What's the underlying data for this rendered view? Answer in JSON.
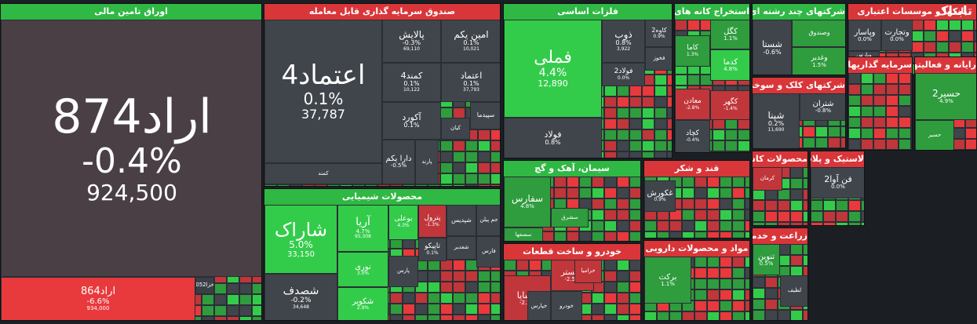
{
  "chart_data": {
    "type": "treemap",
    "colors": {
      "up_strong": "#33cc4a",
      "up": "#2f9c3e",
      "neutral": "#40454c",
      "down": "#c0363a",
      "down_strong": "#e8393c",
      "header_up": "#2fb844",
      "header_down": "#d9363a"
    },
    "sectors": [
      {
        "name": "اوراق تامین مالی",
        "header": "up",
        "tiles": [
          {
            "symbol": "اراد874",
            "change": "-0.4%",
            "volume": "924,500",
            "color": "#4a3f45"
          },
          {
            "symbol": "اراد864",
            "change": "-6.6%",
            "volume": "934,000",
            "color": "#e8393c"
          },
          {
            "symbol": "خزا052",
            "change": "",
            "volume": "",
            "color": "#3a3f46"
          }
        ]
      },
      {
        "name": "صندوق سرمایه گذاری قابل معامله",
        "header": "down",
        "tiles": [
          {
            "symbol": "اعتماد4",
            "change": "0.1%",
            "volume": "37,787",
            "color": "#40454c"
          },
          {
            "symbol": "امین یکم",
            "change": "0.1%",
            "volume": "10,021",
            "color": "#40454c"
          },
          {
            "symbol": "پالایش",
            "change": "-0.3%",
            "volume": "69,110",
            "color": "#40454c"
          },
          {
            "symbol": "اعتماد",
            "change": "0.1%",
            "volume": "37,793",
            "color": "#40454c"
          },
          {
            "symbol": "کمند4",
            "change": "0.1%",
            "volume": "10,122",
            "color": "#40454c"
          },
          {
            "symbol": "آکورد",
            "change": "0.1%",
            "volume": "",
            "color": "#40454c"
          },
          {
            "symbol": "سپیدما",
            "change": "",
            "volume": "",
            "color": "#40454c"
          },
          {
            "symbol": "کیان",
            "change": "",
            "volume": "",
            "color": "#40454c"
          },
          {
            "symbol": "دارا یکم",
            "change": "-0.5%",
            "volume": "",
            "color": "#40454c"
          },
          {
            "symbol": "پارند",
            "change": "",
            "volume": "",
            "color": "#40454c"
          },
          {
            "symbol": "کمند",
            "change": "",
            "volume": "",
            "color": "#40454c"
          }
        ]
      },
      {
        "name": "فلزات اساسی",
        "header": "up",
        "tiles": [
          {
            "symbol": "فملی",
            "change": "4.4%",
            "volume": "12,890",
            "color": "#33cc4a"
          },
          {
            "symbol": "ذوب",
            "change": "0.8%",
            "volume": "3,922",
            "color": "#40454c"
          },
          {
            "symbol": "کاوه2",
            "change": "0.9%",
            "volume": "",
            "color": "#40454c"
          },
          {
            "symbol": "فخوز",
            "change": "",
            "volume": "",
            "color": "#40454c"
          },
          {
            "symbol": "فولاد2",
            "change": "0.0%",
            "volume": "",
            "color": "#40454c"
          },
          {
            "symbol": "فولاد",
            "change": "0.8%",
            "volume": "",
            "color": "#40454c"
          }
        ]
      },
      {
        "name": "استخراج کانه های فلزی",
        "header": "up",
        "tiles": [
          {
            "symbol": "کگل",
            "change": "1.1%",
            "volume": "",
            "color": "#2f9c3e"
          },
          {
            "symbol": "کاما",
            "change": "1.3%",
            "volume": "",
            "color": "#2f9c3e"
          },
          {
            "symbol": "کدما",
            "change": "4.8%",
            "volume": "",
            "color": "#33cc4a"
          },
          {
            "symbol": "کچاد",
            "change": "-0.4%",
            "volume": "",
            "color": "#40454c"
          },
          {
            "symbol": "کگهر",
            "change": "-1.4%",
            "volume": "",
            "color": "#c0363a"
          },
          {
            "symbol": "معادن",
            "change": "-2.8%",
            "volume": "",
            "color": "#c0363a"
          }
        ]
      },
      {
        "name": "شرکتهای چند رشته ای صنعتی",
        "header": "up",
        "tiles": [
          {
            "symbol": "شستا",
            "change": "-0.6%",
            "volume": "",
            "color": "#40454c"
          },
          {
            "symbol": "وصندوق",
            "change": "",
            "volume": "",
            "color": "#2f9c3e"
          },
          {
            "symbol": "وغدیر",
            "change": "1.5%",
            "volume": "",
            "color": "#2f9c3e"
          }
        ]
      },
      {
        "name": "بانکها و موسسات اعتباری",
        "header": "down",
        "tiles": [
          {
            "symbol": "وپاسار",
            "change": "0.0%",
            "volume": "",
            "color": "#40454c"
          },
          {
            "symbol": "وتجارت",
            "change": "0.0%",
            "volume": "",
            "color": "#40454c"
          },
          {
            "symbol": "وپارس",
            "change": "",
            "volume": "",
            "color": "#40454c"
          }
        ]
      },
      {
        "name": "محصولات شیمیایی",
        "header": "up",
        "tiles": [
          {
            "symbol": "شاراک",
            "change": "5.0%",
            "volume": "33,150",
            "color": "#33cc4a"
          },
          {
            "symbol": "شصدف",
            "change": "-0.2%",
            "volume": "34,648",
            "color": "#40454c"
          },
          {
            "symbol": "آریا",
            "change": "4.7%",
            "volume": "95,308",
            "color": "#33cc4a"
          },
          {
            "symbol": "نوری",
            "change": "3.0%",
            "volume": "",
            "color": "#33cc4a"
          },
          {
            "symbol": "شکویر",
            "change": "2.9%",
            "volume": "",
            "color": "#33cc4a"
          },
          {
            "symbol": "بوعلی",
            "change": "4.3%",
            "volume": "",
            "color": "#33cc4a"
          },
          {
            "symbol": "پترول",
            "change": "-1.3%",
            "volume": "",
            "color": "#c0363a"
          },
          {
            "symbol": "تاپیکو",
            "change": "0.1%",
            "volume": "",
            "color": "#40454c"
          },
          {
            "symbol": "شپدیس",
            "change": "",
            "volume": "",
            "color": "#40454c"
          },
          {
            "symbol": "جم پیلن",
            "change": "",
            "volume": "",
            "color": "#40454c"
          },
          {
            "symbol": "شغدیر",
            "change": "",
            "volume": "",
            "color": "#40454c"
          },
          {
            "symbol": "پارس",
            "change": "",
            "volume": "",
            "color": "#40454c"
          },
          {
            "symbol": "فارس",
            "change": "",
            "volume": "",
            "color": "#40454c"
          }
        ]
      },
      {
        "name": "سیمان، آهک و گچ",
        "header": "up",
        "tiles": [
          {
            "symbol": "سفارس",
            "change": "4.8%",
            "volume": "",
            "color": "#2f9c3e"
          },
          {
            "symbol": "سشرق",
            "change": "",
            "volume": "",
            "color": "#2f9c3e"
          },
          {
            "symbol": "سصفها",
            "change": "",
            "volume": "",
            "color": "#2f9c3e"
          }
        ]
      },
      {
        "name": "خودرو و ساخت قطعات",
        "header": "down",
        "tiles": [
          {
            "symbol": "خساپا",
            "change": "-2.2%",
            "volume": "",
            "color": "#c0363a"
          },
          {
            "symbol": "خگستر",
            "change": "-2.5%",
            "volume": "",
            "color": "#c0363a"
          },
          {
            "symbol": "خزامیا",
            "change": "",
            "volume": "",
            "color": "#c0363a"
          },
          {
            "symbol": "خپارس",
            "change": "",
            "volume": "",
            "color": "#40454c"
          },
          {
            "symbol": "خودرو",
            "change": "",
            "volume": "",
            "color": "#40454c"
          }
        ]
      },
      {
        "name": "قند و شکر",
        "header": "down",
        "tiles": [
          {
            "symbol": "غکورش",
            "change": "0.9%",
            "volume": "",
            "color": "#40454c"
          }
        ]
      },
      {
        "name": "مواد و محصولات دارویی",
        "header": "down",
        "tiles": [
          {
            "symbol": "برکت",
            "change": "1.1%",
            "volume": "",
            "color": "#2f9c3e"
          }
        ]
      },
      {
        "name": "محصولات کاشی و سرامیک",
        "header": "down",
        "tiles": [
          {
            "symbol": "کرمان",
            "change": "",
            "volume": "",
            "color": "#c0363a"
          }
        ]
      },
      {
        "name": "زراعت و خدمات وابسته",
        "header": "down",
        "tiles": [
          {
            "symbol": "تنوین",
            "change": "0.5%",
            "volume": "",
            "color": "#2f9c3e"
          },
          {
            "symbol": "لطیف",
            "change": "",
            "volume": "",
            "color": "#40454c"
          }
        ]
      },
      {
        "name": "لاستیک و پلاستیک",
        "header": "down",
        "tiles": [
          {
            "symbol": "فن آوا2",
            "change": "0.0%",
            "volume": "",
            "color": "#40454c"
          }
        ]
      },
      {
        "name": "رایانه و فعالیتهای وابسته",
        "header": "down",
        "tiles": [
          {
            "symbol": "حسیر2",
            "change": "4.9%",
            "volume": "",
            "color": "#2f9c3e"
          },
          {
            "symbol": "حسیر",
            "change": "",
            "volume": "",
            "color": "#2f9c3e"
          }
        ]
      },
      {
        "name": "شرکتهای کلک و سوخت هسته ای",
        "header": "down",
        "tiles": [
          {
            "symbol": "شپنا",
            "change": "0.2%",
            "volume": "11,690",
            "color": "#40454c"
          },
          {
            "symbol": "شتران",
            "change": "-0.8%",
            "volume": "",
            "color": "#40454c"
          }
        ]
      },
      {
        "name": "سرمایه گذاریها",
        "header": "down",
        "tiles": []
      }
    ]
  },
  "brand": {
    "logo_text": "تابناک"
  }
}
